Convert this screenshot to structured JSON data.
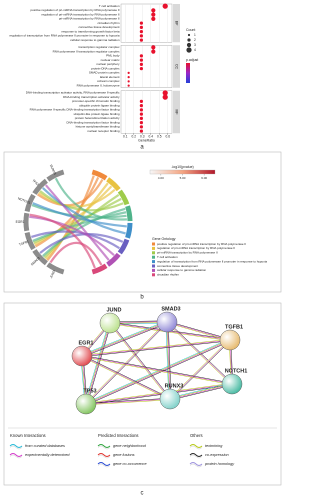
{
  "chart_data": [
    {
      "type": "dot",
      "x_label": "GeneRatio",
      "xlim": [
        0.05,
        0.65
      ],
      "xticks": [
        0.1,
        0.2,
        0.3,
        0.4,
        0.5,
        0.6
      ],
      "grid": true,
      "color": "#e8112d",
      "facets": [
        {
          "name": "BP",
          "categories": [
            "T cell activation",
            "positive regulation of pri-miRNA transcription by RNA polymerase II",
            "regulation of pri-miRNA transcription by RNA polymerase II",
            "pri-miRNA transcription by RNA polymerase II",
            "circadian rhythm",
            "connective tissue development",
            "response to transforming growth factor beta",
            "regulation of transcription from RNA polymerase II promoter in response to hypoxia",
            "cellular response to gamma radiation"
          ],
          "values": [
            0.57,
            0.43,
            0.43,
            0.43,
            0.29,
            0.29,
            0.29,
            0.29,
            0.29
          ],
          "counts": [
            4,
            3,
            3,
            3,
            2,
            2,
            2,
            2,
            2
          ]
        },
        {
          "name": "CC",
          "categories": [
            "transcription regulator complex",
            "RNA polymerase II transcription regulator complex",
            "PML body",
            "nuclear matrix",
            "nuclear periphery",
            "protein-DNA complex",
            "SMAD protein complex",
            "lateral element",
            "cohesin complex",
            "RNA polymerase II, holoenzyme"
          ],
          "values": [
            0.43,
            0.43,
            0.29,
            0.29,
            0.29,
            0.29,
            0.14,
            0.14,
            0.14,
            0.14
          ],
          "counts": [
            3,
            3,
            2,
            2,
            2,
            2,
            1,
            1,
            1,
            1
          ]
        },
        {
          "name": "MF",
          "categories": [
            "DNA-binding transcription activator activity, RNA polymerase II-specific",
            "DNA-binding transcription activator activity",
            "promoter-specific chromatin binding",
            "ubiquitin protein ligase binding",
            "RNA polymerase II-specific DNA-binding transcription factor binding",
            "ubiquitin-like protein ligase binding",
            "protein heterodimerization activity",
            "DNA-binding transcription factor binding",
            "histone acetyltransferase binding",
            "nuclear receptor binding"
          ],
          "values": [
            0.57,
            0.57,
            0.29,
            0.29,
            0.29,
            0.29,
            0.29,
            0.29,
            0.29,
            0.29
          ],
          "counts": [
            4,
            4,
            2,
            2,
            2,
            2,
            2,
            2,
            2,
            2
          ]
        }
      ],
      "size_legend": {
        "title": "Count",
        "values": [
          1,
          2,
          3,
          4
        ]
      },
      "color_legend": {
        "title": "p.adjust",
        "colors": [
          "#e8112d",
          "#9b27c9",
          "#2340d8"
        ]
      }
    },
    {
      "type": "chord",
      "title": "-log10(pvalue)",
      "legend_title": "Gene Ontology",
      "categories": [
        "JUND",
        "SMAD3",
        "TGFB1",
        "EGR1",
        "NOTCH1",
        "TP53",
        "RUNX3"
      ],
      "series": [
        {
          "name": "positive regulation of pri-miRNA transcription by RNA polymerase II",
          "color": "#f08a3c",
          "values": [
            0,
            1,
            1,
            0,
            0,
            1,
            0
          ]
        },
        {
          "name": "regulation of pri-miRNA transcription by RNA polymerase II",
          "color": "#e8c240",
          "values": [
            0,
            1,
            1,
            0,
            0,
            1,
            0
          ]
        },
        {
          "name": "pri-miRNA transcription by RNA polymerase II",
          "color": "#9ecb4a",
          "values": [
            0,
            1,
            1,
            0,
            0,
            1,
            0
          ]
        },
        {
          "name": "T cell activation",
          "color": "#4fb38a",
          "values": [
            0,
            1,
            1,
            0,
            1,
            0,
            1
          ]
        },
        {
          "name": "regulation of transcription from RNA polymerase II promoter in response to hypoxia",
          "color": "#3f8fc9",
          "values": [
            0,
            0,
            0,
            0,
            1,
            1,
            0
          ]
        },
        {
          "name": "connective tissue development",
          "color": "#6a5fc1",
          "values": [
            0,
            1,
            1,
            0,
            0,
            0,
            0
          ]
        },
        {
          "name": "cellular response to gamma radiation",
          "color": "#b052b5",
          "values": [
            0,
            0,
            0,
            1,
            0,
            1,
            0
          ]
        },
        {
          "name": "circadian rhythm",
          "color": "#d9487a",
          "values": [
            1,
            0,
            0,
            1,
            0,
            0,
            0
          ]
        }
      ],
      "colorbar": {
        "lim": [
          3.5,
          6.5
        ],
        "ticks": [
          {
            "value": 4,
            "label": "4.00"
          },
          {
            "value": 5,
            "label": "5.00"
          },
          {
            "value": 6,
            "label": "6.00"
          }
        ],
        "colors": [
          "#f7f7f7",
          "#f4a582",
          "#b2182b"
        ]
      }
    }
  ],
  "network": {
    "nodes": [
      {
        "label": "JUND",
        "color": "#b9e08a"
      },
      {
        "label": "SMAD3",
        "color": "#8e86d6"
      },
      {
        "label": "TGFB1",
        "color": "#e6b86a"
      },
      {
        "label": "EGR1",
        "color": "#e0454a"
      },
      {
        "label": "NOTCH1",
        "color": "#43b8a0"
      },
      {
        "label": "TP53",
        "color": "#7fc35a"
      },
      {
        "label": "RUNX3",
        "color": "#7ed0c8"
      }
    ],
    "legend": [
      {
        "title": "Known Interactions",
        "items": [
          {
            "label": "from curated databases",
            "color": "#21b8d6"
          },
          {
            "label": "experimentally determined",
            "color": "#d234c9"
          }
        ]
      },
      {
        "title": "Predicted Interactions",
        "items": [
          {
            "label": "gene neighborhood",
            "color": "#2ca33b"
          },
          {
            "label": "gene fusions",
            "color": "#e0302a"
          },
          {
            "label": "gene co-occurrence",
            "color": "#2346d1"
          }
        ]
      },
      {
        "title": "Others",
        "items": [
          {
            "label": "textmining",
            "color": "#b5c810"
          },
          {
            "label": "co-expression",
            "color": "#222222"
          },
          {
            "label": "protein homology",
            "color": "#9b90dc"
          }
        ]
      }
    ]
  },
  "panel_labels": [
    "a",
    "b",
    "c"
  ]
}
